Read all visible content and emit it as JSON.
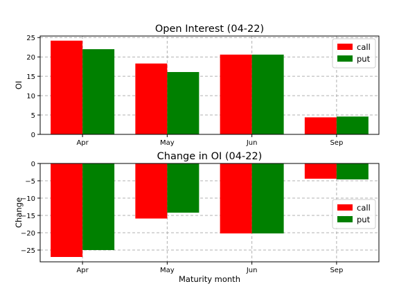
{
  "chart_data": [
    {
      "type": "bar",
      "title": "Open Interest (04-22)",
      "xlabel": "",
      "ylabel": "OI",
      "categories": [
        "Apr",
        "May",
        "Jun",
        "Sep"
      ],
      "series": [
        {
          "name": "call",
          "color": "#ff0000",
          "values": [
            24.2,
            18.3,
            20.6,
            4.4
          ]
        },
        {
          "name": "put",
          "color": "#008000",
          "values": [
            22.0,
            16.1,
            20.6,
            4.6
          ]
        }
      ],
      "ylim": [
        0,
        25.4
      ],
      "yticks": [
        0,
        5,
        10,
        15,
        20,
        25
      ],
      "grid": true,
      "legend": "top-right"
    },
    {
      "type": "bar",
      "title": "Change in OI (04-22)",
      "xlabel": "Maturity month",
      "ylabel": "Change",
      "categories": [
        "Apr",
        "May",
        "Jun",
        "Sep"
      ],
      "series": [
        {
          "name": "call",
          "color": "#ff0000",
          "values": [
            -27.0,
            -15.9,
            -20.2,
            -4.4
          ]
        },
        {
          "name": "put",
          "color": "#008000",
          "values": [
            -25.0,
            -14.2,
            -20.2,
            -4.6
          ]
        }
      ],
      "ylim": [
        -28.4,
        0
      ],
      "yticks": [
        0,
        -5,
        -10,
        -15,
        -20,
        -25
      ],
      "grid": true,
      "legend": "center-right"
    }
  ]
}
